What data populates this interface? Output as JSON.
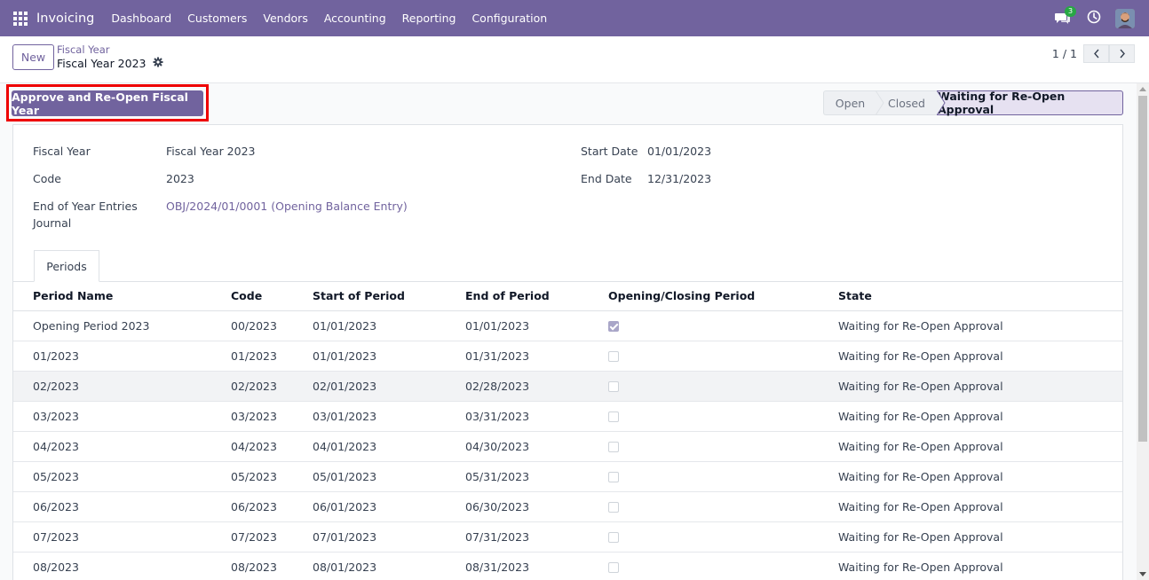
{
  "navbar": {
    "app_name": "Invoicing",
    "menu": [
      "Dashboard",
      "Customers",
      "Vendors",
      "Accounting",
      "Reporting",
      "Configuration"
    ],
    "chat_badge": "3",
    "icons": [
      "apps-grid-icon",
      "chat-icon",
      "clock-icon",
      "user-avatar"
    ]
  },
  "control": {
    "new_label": "New",
    "breadcrumb_parent": "Fiscal Year",
    "breadcrumb_current": "Fiscal Year 2023",
    "pager_value": "1 / 1"
  },
  "actions": {
    "approve_label": "Approve and Re-Open Fiscal Year"
  },
  "statusbar": {
    "steps": [
      "Open",
      "Closed",
      "Waiting for Re-Open Approval"
    ],
    "active": "Waiting for Re-Open Approval"
  },
  "form": {
    "fiscal_year_label": "Fiscal Year",
    "fiscal_year_value": "Fiscal Year 2023",
    "code_label": "Code",
    "code_value": "2023",
    "journal_label_line1": "End of Year Entries",
    "journal_label_line2": "Journal",
    "journal_value": "OBJ/2024/01/0001 (Opening Balance Entry)",
    "start_date_label": "Start Date",
    "start_date_value": "01/01/2023",
    "end_date_label": "End Date",
    "end_date_value": "12/31/2023"
  },
  "tabs": {
    "periods_label": "Periods"
  },
  "periods": {
    "columns": [
      "Period Name",
      "Code",
      "Start of Period",
      "End of Period",
      "Opening/Closing Period",
      "State"
    ],
    "rows": [
      {
        "name": "Opening Period 2023",
        "code": "00/2023",
        "start": "01/01/2023",
        "end": "01/01/2023",
        "opening": true,
        "state": "Waiting for Re-Open Approval"
      },
      {
        "name": "01/2023",
        "code": "01/2023",
        "start": "01/01/2023",
        "end": "01/31/2023",
        "opening": false,
        "state": "Waiting for Re-Open Approval"
      },
      {
        "name": "02/2023",
        "code": "02/2023",
        "start": "02/01/2023",
        "end": "02/28/2023",
        "opening": false,
        "state": "Waiting for Re-Open Approval"
      },
      {
        "name": "03/2023",
        "code": "03/2023",
        "start": "03/01/2023",
        "end": "03/31/2023",
        "opening": false,
        "state": "Waiting for Re-Open Approval"
      },
      {
        "name": "04/2023",
        "code": "04/2023",
        "start": "04/01/2023",
        "end": "04/30/2023",
        "opening": false,
        "state": "Waiting for Re-Open Approval"
      },
      {
        "name": "05/2023",
        "code": "05/2023",
        "start": "05/01/2023",
        "end": "05/31/2023",
        "opening": false,
        "state": "Waiting for Re-Open Approval"
      },
      {
        "name": "06/2023",
        "code": "06/2023",
        "start": "06/01/2023",
        "end": "06/30/2023",
        "opening": false,
        "state": "Waiting for Re-Open Approval"
      },
      {
        "name": "07/2023",
        "code": "07/2023",
        "start": "07/01/2023",
        "end": "07/31/2023",
        "opening": false,
        "state": "Waiting for Re-Open Approval"
      },
      {
        "name": "08/2023",
        "code": "08/2023",
        "start": "08/01/2023",
        "end": "08/31/2023",
        "opening": false,
        "state": "Waiting for Re-Open Approval"
      }
    ]
  },
  "colors": {
    "brand": "#71639e",
    "highlight": "#ee0000",
    "badge": "#28a745"
  }
}
